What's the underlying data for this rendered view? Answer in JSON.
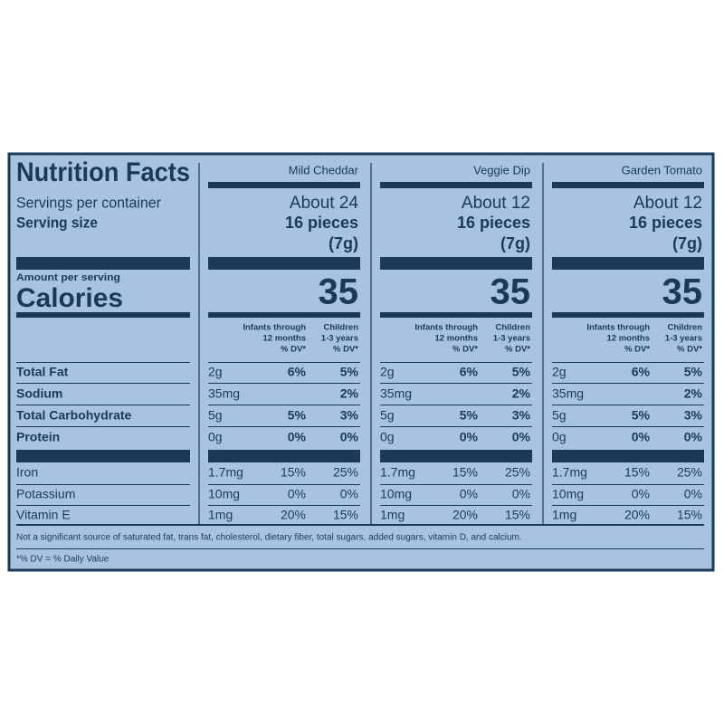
{
  "title": "Nutrition Facts",
  "labels": {
    "servings": "Servings per container",
    "serving_size": "Serving size",
    "amount_per_serving": "Amount per serving",
    "calories": "Calories"
  },
  "dv_headers": [
    [
      "Infants through",
      "12 months",
      "% DV*"
    ],
    [
      "Children",
      "1-3 years",
      "% DV*"
    ]
  ],
  "nutrients": [
    "Total Fat",
    "Sodium",
    "Total Carbohydrate",
    "Protein",
    "Iron",
    "Potassium",
    "Vitamin E"
  ],
  "products": [
    {
      "name": "Mild Cheddar",
      "servings": "About 24",
      "serving_size": "16 pieces",
      "serving_weight": "(7g)",
      "calories": "35",
      "rows": [
        [
          "2g",
          "6%",
          "5%"
        ],
        [
          "35mg",
          null,
          "2%"
        ],
        [
          "5g",
          "5%",
          "3%"
        ],
        [
          "0g",
          "0%",
          "0%"
        ],
        [
          "1.7mg",
          "15%",
          "25%"
        ],
        [
          "10mg",
          "0%",
          "0%"
        ],
        [
          "1mg",
          "20%",
          "15%"
        ]
      ]
    },
    {
      "name": "Veggie Dip",
      "servings": "About 12",
      "serving_size": "16 pieces",
      "serving_weight": "(7g)",
      "calories": "35",
      "rows": [
        [
          "2g",
          "6%",
          "5%"
        ],
        [
          "35mg",
          null,
          "2%"
        ],
        [
          "5g",
          "5%",
          "3%"
        ],
        [
          "0g",
          "0%",
          "0%"
        ],
        [
          "1.7mg",
          "15%",
          "25%"
        ],
        [
          "10mg",
          "0%",
          "0%"
        ],
        [
          "1mg",
          "20%",
          "15%"
        ]
      ]
    },
    {
      "name": "Garden Tomato",
      "servings": "About 12",
      "serving_size": "16 pieces",
      "serving_weight": "(7g)",
      "calories": "35",
      "rows": [
        [
          "2g",
          "6%",
          "5%"
        ],
        [
          "35mg",
          null,
          "2%"
        ],
        [
          "5g",
          "5%",
          "3%"
        ],
        [
          "0g",
          "0%",
          "0%"
        ],
        [
          "1.7mg",
          "15%",
          "25%"
        ],
        [
          "10mg",
          "0%",
          "0%"
        ],
        [
          "1mg",
          "20%",
          "15%"
        ]
      ]
    }
  ],
  "footnote": "Not a significant source of saturated fat, trans fat, cholesterol, dietary fiber, total sugars, added sugars, vitamin D, and calcium.",
  "dv_note": "*% DV = % Daily Value"
}
